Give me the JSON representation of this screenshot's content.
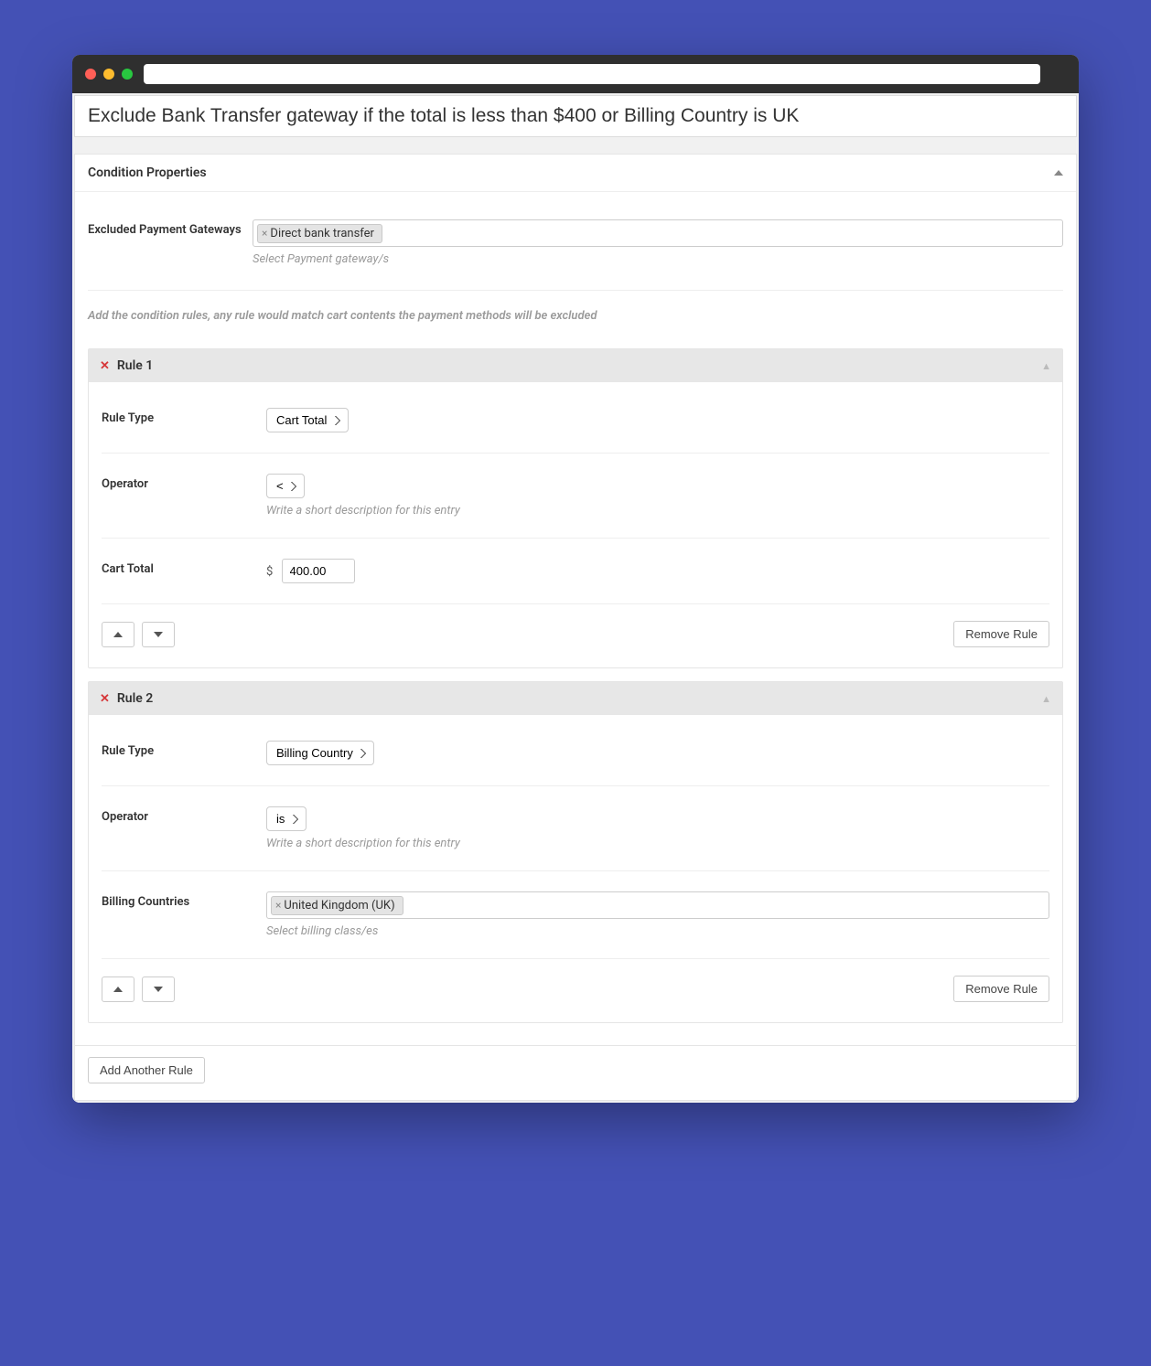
{
  "colors": {
    "page_bg": "#4451b5",
    "titlebar_bg": "#2f2f2f",
    "panel_bg": "#ffffff",
    "rule_header_bg": "#e7e7e7",
    "helper_text": "#9a9a9a",
    "delete_x": "#d63638"
  },
  "page": {
    "title": "Exclude Bank Transfer gateway if the total is less than $400 or Billing Country is UK"
  },
  "panel": {
    "title": "Condition Properties",
    "excluded_label": "Excluded Payment Gateways",
    "excluded_tag": "Direct bank transfer",
    "excluded_helper": "Select Payment gateway/s",
    "instruction": "Add the condition rules, any rule would match cart contents the payment methods will be excluded"
  },
  "rule1": {
    "title": "Rule 1",
    "type_label": "Rule Type",
    "type_value": "Cart Total",
    "operator_label": "Operator",
    "operator_value": "<",
    "operator_helper": "Write a short description for this entry",
    "amount_label": "Cart Total",
    "currency": "$",
    "amount_value": "400.00",
    "remove_label": "Remove Rule"
  },
  "rule2": {
    "title": "Rule 2",
    "type_label": "Rule Type",
    "type_value": "Billing Country",
    "operator_label": "Operator",
    "operator_value": "is",
    "operator_helper": "Write a short description for this entry",
    "countries_label": "Billing Countries",
    "country_tag": "United Kingdom (UK)",
    "countries_helper": "Select billing class/es",
    "remove_label": "Remove Rule"
  },
  "actions": {
    "add_rule": "Add Another Rule"
  }
}
